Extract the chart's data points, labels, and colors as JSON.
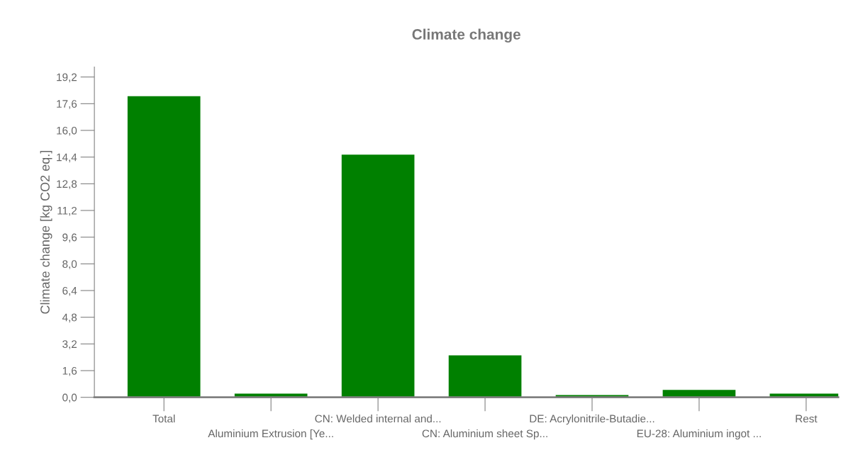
{
  "chart_data": {
    "type": "bar",
    "title": "Climate change",
    "ylabel": "Climate change [kg CO2 eq.]",
    "categories": [
      "Total",
      "Aluminium Extrusion [Ye...",
      "CN: Welded internal and...",
      "CN: Aluminium sheet Sp...",
      "DE: Acrylonitrile-Butadie...",
      "EU-28: Aluminium ingot ...",
      "Rest"
    ],
    "values": [
      18.05,
      0.22,
      14.55,
      2.52,
      0.14,
      0.45,
      0.22
    ],
    "color": "#008000",
    "ylim": [
      0,
      19.8
    ],
    "yticks": [
      {
        "value": 0,
        "label": "0,0"
      },
      {
        "value": 1.6,
        "label": "1,6"
      },
      {
        "value": 3.2,
        "label": "3,2"
      },
      {
        "value": 4.8,
        "label": "4,8"
      },
      {
        "value": 6.4,
        "label": "6,4"
      },
      {
        "value": 8.0,
        "label": "8,0"
      },
      {
        "value": 9.6,
        "label": "9,6"
      },
      {
        "value": 11.2,
        "label": "11,2"
      },
      {
        "value": 12.8,
        "label": "12,8"
      },
      {
        "value": 14.4,
        "label": "14,4"
      },
      {
        "value": 16.0,
        "label": "16,0"
      },
      {
        "value": 17.6,
        "label": "17,6"
      },
      {
        "value": 19.2,
        "label": "19,2"
      }
    ],
    "grid": false,
    "legend": false
  }
}
